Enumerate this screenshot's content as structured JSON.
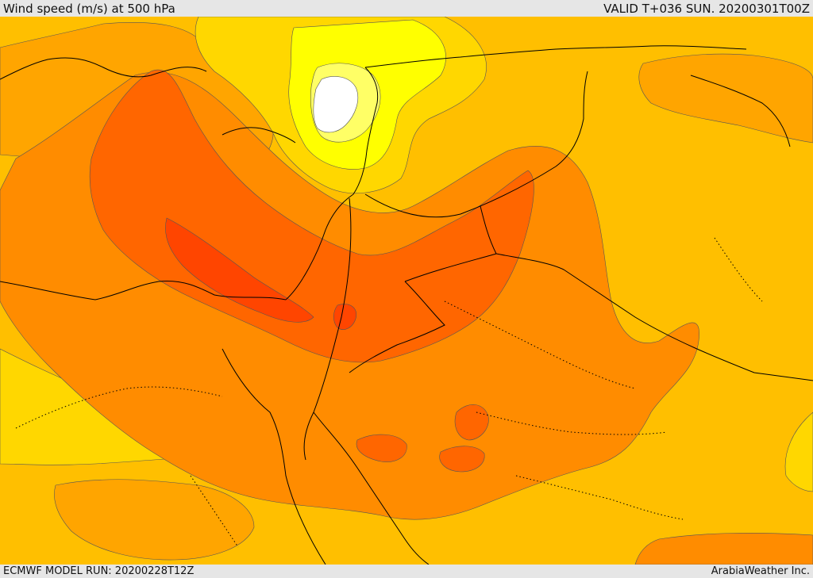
{
  "header": {
    "title": "Wind speed (m/s) at 500 hPa",
    "valid": "VALID T+036 SUN. 20200301T00Z"
  },
  "footer": {
    "model_run": "ECMWF MODEL RUN: 20200228T12Z",
    "credit": "ArabiaWeather Inc."
  },
  "map": {
    "colors": {
      "white": "#ffffff",
      "pale_yellow": "#ffff66",
      "yellow": "#ffff00",
      "gold": "#ffd700",
      "amber": "#ffbf00",
      "orange_light": "#ffa500",
      "orange": "#ff8c00",
      "orange_dark": "#ff6600",
      "red_orange": "#ff4500",
      "coast": "#000000"
    }
  }
}
